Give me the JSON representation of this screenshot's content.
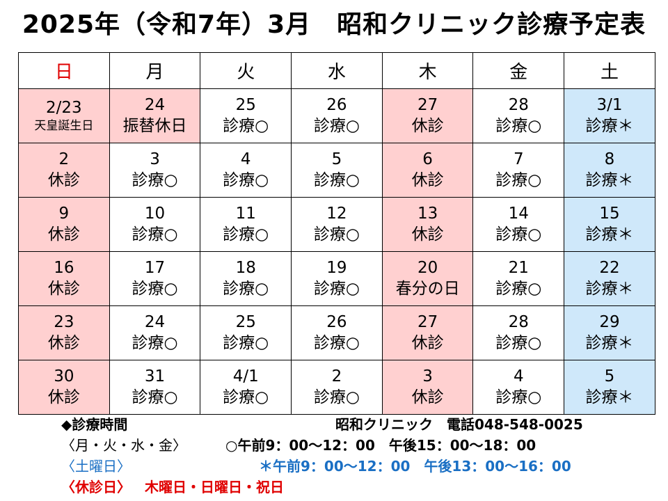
{
  "title": "2025年（令和7年）3月　昭和クリニック診療予定表",
  "weekdays": [
    "日",
    "月",
    "火",
    "水",
    "木",
    "金",
    "土"
  ],
  "weeks": [
    [
      {
        "day": "2/23",
        "label": "天皇誕生日",
        "type": "sun"
      },
      {
        "day": "24",
        "label": "振替休日",
        "type": "closed"
      },
      {
        "day": "25",
        "label": "診療○",
        "type": "open"
      },
      {
        "day": "26",
        "label": "診療○",
        "type": "open"
      },
      {
        "day": "27",
        "label": "休診",
        "type": "closed"
      },
      {
        "day": "28",
        "label": "診療○",
        "type": "open"
      },
      {
        "day": "3/1",
        "label": "診療＊",
        "type": "sat"
      }
    ],
    [
      {
        "day": "2",
        "label": "休診",
        "type": "sun"
      },
      {
        "day": "3",
        "label": "診療○",
        "type": "open"
      },
      {
        "day": "4",
        "label": "診療○",
        "type": "open"
      },
      {
        "day": "5",
        "label": "診療○",
        "type": "open"
      },
      {
        "day": "6",
        "label": "休診",
        "type": "closed"
      },
      {
        "day": "7",
        "label": "診療○",
        "type": "open"
      },
      {
        "day": "8",
        "label": "診療＊",
        "type": "sat"
      }
    ],
    [
      {
        "day": "9",
        "label": "休診",
        "type": "sun"
      },
      {
        "day": "10",
        "label": "診療○",
        "type": "open"
      },
      {
        "day": "11",
        "label": "診療○",
        "type": "open"
      },
      {
        "day": "12",
        "label": "診療○",
        "type": "open"
      },
      {
        "day": "13",
        "label": "休診",
        "type": "closed"
      },
      {
        "day": "14",
        "label": "診療○",
        "type": "open"
      },
      {
        "day": "15",
        "label": "診療＊",
        "type": "sat"
      }
    ],
    [
      {
        "day": "16",
        "label": "休診",
        "type": "sun"
      },
      {
        "day": "17",
        "label": "診療○",
        "type": "open"
      },
      {
        "day": "18",
        "label": "診療○",
        "type": "open"
      },
      {
        "day": "19",
        "label": "診療○",
        "type": "open"
      },
      {
        "day": "20",
        "label": "春分の日",
        "type": "closed"
      },
      {
        "day": "21",
        "label": "診療○",
        "type": "open"
      },
      {
        "day": "22",
        "label": "診療＊",
        "type": "sat"
      }
    ],
    [
      {
        "day": "23",
        "label": "休診",
        "type": "sun"
      },
      {
        "day": "24",
        "label": "診療○",
        "type": "open"
      },
      {
        "day": "25",
        "label": "診療○",
        "type": "open"
      },
      {
        "day": "26",
        "label": "診療○",
        "type": "open"
      },
      {
        "day": "27",
        "label": "休診",
        "type": "closed"
      },
      {
        "day": "28",
        "label": "診療○",
        "type": "open"
      },
      {
        "day": "29",
        "label": "診療＊",
        "type": "sat"
      }
    ],
    [
      {
        "day": "30",
        "label": "休診",
        "type": "sun"
      },
      {
        "day": "31",
        "label": "診療○",
        "type": "open"
      },
      {
        "day": "4/1",
        "label": "診療○",
        "type": "open"
      },
      {
        "day": "2",
        "label": "診療○",
        "type": "open"
      },
      {
        "day": "3",
        "label": "休診",
        "type": "closed"
      },
      {
        "day": "4",
        "label": "診療○",
        "type": "open"
      },
      {
        "day": "5",
        "label": "診療＊",
        "type": "sat"
      }
    ]
  ],
  "footer": {
    "hours_heading": "◆診療時間",
    "clinic_contact": "昭和クリニック　電話048-548-0025",
    "weekday_label": "〈月・火・水・金〉",
    "weekday_hours": "○午前9：00～12：00　午後15：00～18：00",
    "saturday_label": "〈土曜日〉",
    "saturday_hours": "＊午前9：00～12：00　午後13：00～16：00",
    "closed_label": "〈休診日〉",
    "closed_days": "木曜日・日曜日・祝日"
  },
  "colors": {
    "sunday_fill": "#ffd0d0",
    "saturday_fill": "#cfe8fa",
    "closed_fill": "#ffd0d0",
    "sunday_header": "#e00000",
    "saturday_text": "#1a6fc4",
    "closed_text": "#e00000"
  }
}
